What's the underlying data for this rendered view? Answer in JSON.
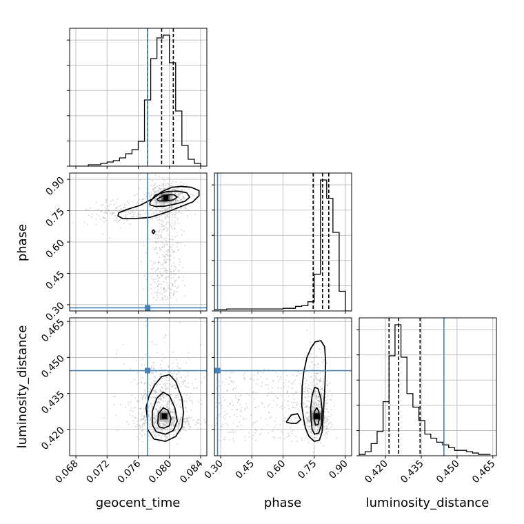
{
  "chart_data": {
    "type": "corner",
    "parameters": [
      "geocent_time",
      "phase",
      "luminosity_distance"
    ],
    "truths": {
      "geocent_time": 0.0772,
      "phase": 0.285,
      "luminosity_distance": 0.4445
    },
    "colors": {
      "truth": "#4682b4",
      "hist": "#000000",
      "grid": "#b0b0b0",
      "scatter": "#a0a0a0"
    },
    "grid": true,
    "ranges": {
      "geocent_time": [
        0.0672,
        0.0848
      ],
      "phase": [
        0.27,
        0.93
      ],
      "luminosity_distance": [
        0.409,
        0.4665
      ]
    },
    "ticks": {
      "geocent_time": [
        0.068,
        0.072,
        0.076,
        0.08,
        0.084
      ],
      "phase": [
        0.3,
        0.45,
        0.6,
        0.75,
        0.9
      ],
      "luminosity_distance": [
        0.42,
        0.435,
        0.45,
        0.465
      ]
    },
    "tick_labels": {
      "geocent_time": [
        "0.068",
        "0.072",
        "0.076",
        "0.080",
        "0.084"
      ],
      "phase": [
        "0.30",
        "0.45",
        "0.60",
        "0.75",
        "0.90"
      ],
      "luminosity_distance": [
        "0.420",
        "0.435",
        "0.450",
        "0.465"
      ]
    },
    "quantiles": {
      "geocent_time": [
        0.0772,
        0.079,
        0.0805
      ],
      "phase": [
        0.745,
        0.79,
        0.82
      ],
      "luminosity_distance": [
        0.4215,
        0.4255,
        0.4345
      ]
    },
    "histograms": {
      "geocent_time": {
        "edges": [
          0.0672,
          0.068,
          0.0688,
          0.0696,
          0.0704,
          0.0712,
          0.072,
          0.0728,
          0.0736,
          0.0744,
          0.0752,
          0.076,
          0.0768,
          0.0776,
          0.0784,
          0.0792,
          0.08,
          0.0808,
          0.0816,
          0.0824,
          0.0832,
          0.084,
          0.0848
        ],
        "counts": [
          0,
          0,
          0,
          1,
          1,
          2,
          3,
          4,
          6,
          9,
          12,
          18,
          48,
          78,
          93,
          95,
          75,
          40,
          15,
          5,
          2,
          0
        ]
      },
      "phase": {
        "edges": [
          0.27,
          0.3,
          0.33,
          0.36,
          0.39,
          0.42,
          0.45,
          0.48,
          0.51,
          0.54,
          0.57,
          0.6,
          0.63,
          0.66,
          0.69,
          0.72,
          0.75,
          0.78,
          0.81,
          0.84,
          0.87,
          0.9,
          0.93
        ],
        "counts": [
          1,
          1,
          1.5,
          1.5,
          1.5,
          1.5,
          1.5,
          1.5,
          1.5,
          1.5,
          1.5,
          2,
          2,
          3.5,
          4,
          7,
          28,
          100,
          86,
          60,
          15,
          0
        ]
      },
      "luminosity_distance": {
        "edges": [
          0.409,
          0.4115,
          0.414,
          0.4165,
          0.419,
          0.4215,
          0.424,
          0.4265,
          0.429,
          0.4315,
          0.434,
          0.4365,
          0.439,
          0.4415,
          0.444,
          0.4465,
          0.449,
          0.4515,
          0.454,
          0.4565,
          0.459,
          0.4615,
          0.464
        ],
        "counts": [
          1,
          3,
          9,
          18,
          40,
          74,
          97,
          73,
          46,
          36,
          26,
          16,
          13,
          10,
          8,
          6,
          4,
          4,
          3,
          2,
          1,
          1
        ]
      }
    },
    "contours": {
      "phase_vs_geocent_time": [
        [
          [
            0.0735,
            0.74
          ],
          [
            0.0745,
            0.755
          ],
          [
            0.0762,
            0.775
          ],
          [
            0.078,
            0.81
          ],
          [
            0.079,
            0.84
          ],
          [
            0.0803,
            0.862
          ],
          [
            0.0815,
            0.866
          ],
          [
            0.0828,
            0.862
          ],
          [
            0.0838,
            0.846
          ],
          [
            0.0838,
            0.822
          ],
          [
            0.083,
            0.792
          ],
          [
            0.0815,
            0.77
          ],
          [
            0.08,
            0.748
          ],
          [
            0.079,
            0.735
          ],
          [
            0.0775,
            0.718
          ],
          [
            0.0755,
            0.712
          ],
          [
            0.074,
            0.712
          ],
          [
            0.0734,
            0.725
          ],
          [
            0.0735,
            0.74
          ]
        ],
        [
          [
            0.0775,
            0.79
          ],
          [
            0.0782,
            0.825
          ],
          [
            0.0795,
            0.84
          ],
          [
            0.081,
            0.844
          ],
          [
            0.0822,
            0.836
          ],
          [
            0.0826,
            0.815
          ],
          [
            0.082,
            0.795
          ],
          [
            0.0808,
            0.782
          ],
          [
            0.0795,
            0.772
          ],
          [
            0.0782,
            0.77
          ],
          [
            0.0775,
            0.778
          ],
          [
            0.0775,
            0.79
          ]
        ],
        [
          [
            0.0784,
            0.805
          ],
          [
            0.079,
            0.818
          ],
          [
            0.0798,
            0.826
          ],
          [
            0.0806,
            0.826
          ],
          [
            0.081,
            0.815
          ],
          [
            0.0805,
            0.802
          ],
          [
            0.0795,
            0.796
          ],
          [
            0.0786,
            0.797
          ],
          [
            0.0784,
            0.805
          ]
        ],
        [
          [
            0.07775,
            0.65
          ],
          [
            0.07795,
            0.658
          ],
          [
            0.07815,
            0.65
          ],
          [
            0.07795,
            0.64
          ],
          [
            0.07775,
            0.65
          ]
        ]
      ],
      "luminosity_distance_vs_geocent_time": [
        [
          [
            0.0772,
            0.424
          ],
          [
            0.077,
            0.429
          ],
          [
            0.0774,
            0.434
          ],
          [
            0.0781,
            0.4385
          ],
          [
            0.079,
            0.442
          ],
          [
            0.08,
            0.4428
          ],
          [
            0.0808,
            0.44
          ],
          [
            0.0816,
            0.433
          ],
          [
            0.0818,
            0.427
          ],
          [
            0.0816,
            0.421
          ],
          [
            0.0808,
            0.417
          ],
          [
            0.0795,
            0.415
          ],
          [
            0.078,
            0.416
          ],
          [
            0.0772,
            0.42
          ],
          [
            0.0772,
            0.424
          ]
        ],
        [
          [
            0.0778,
            0.422
          ],
          [
            0.0778,
            0.4275
          ],
          [
            0.0784,
            0.433
          ],
          [
            0.0792,
            0.4355
          ],
          [
            0.08,
            0.434
          ],
          [
            0.0807,
            0.429
          ],
          [
            0.081,
            0.4235
          ],
          [
            0.0805,
            0.4195
          ],
          [
            0.0795,
            0.418
          ],
          [
            0.0783,
            0.419
          ],
          [
            0.0778,
            0.422
          ]
        ],
        [
          [
            0.0785,
            0.4225
          ],
          [
            0.0786,
            0.4265
          ],
          [
            0.0792,
            0.429
          ],
          [
            0.0798,
            0.428
          ],
          [
            0.0802,
            0.4245
          ],
          [
            0.08,
            0.4215
          ],
          [
            0.0793,
            0.4205
          ],
          [
            0.0787,
            0.421
          ],
          [
            0.0785,
            0.4225
          ]
        ]
      ],
      "luminosity_distance_vs_phase": [
        [
          [
            0.7,
            0.424
          ],
          [
            0.69,
            0.43
          ],
          [
            0.692,
            0.438
          ],
          [
            0.7,
            0.444
          ],
          [
            0.715,
            0.45
          ],
          [
            0.735,
            0.454
          ],
          [
            0.755,
            0.4565
          ],
          [
            0.782,
            0.457
          ],
          [
            0.8,
            0.4545
          ],
          [
            0.805,
            0.448
          ],
          [
            0.802,
            0.439
          ],
          [
            0.795,
            0.428
          ],
          [
            0.788,
            0.419
          ],
          [
            0.775,
            0.4155
          ],
          [
            0.75,
            0.415
          ],
          [
            0.725,
            0.417
          ],
          [
            0.708,
            0.4205
          ],
          [
            0.7,
            0.424
          ]
        ],
        [
          [
            0.735,
            0.424
          ],
          [
            0.733,
            0.429
          ],
          [
            0.74,
            0.434
          ],
          [
            0.752,
            0.4375
          ],
          [
            0.768,
            0.437
          ],
          [
            0.782,
            0.433
          ],
          [
            0.788,
            0.428
          ],
          [
            0.785,
            0.422
          ],
          [
            0.772,
            0.4185
          ],
          [
            0.752,
            0.418
          ],
          [
            0.74,
            0.42
          ],
          [
            0.735,
            0.424
          ]
        ],
        [
          [
            0.75,
            0.424
          ],
          [
            0.752,
            0.4275
          ],
          [
            0.762,
            0.429
          ],
          [
            0.772,
            0.4275
          ],
          [
            0.775,
            0.4245
          ],
          [
            0.768,
            0.422
          ],
          [
            0.756,
            0.4218
          ],
          [
            0.75,
            0.424
          ]
        ],
        [
          [
            0.615,
            0.423
          ],
          [
            0.64,
            0.426
          ],
          [
            0.67,
            0.4265
          ],
          [
            0.685,
            0.424
          ],
          [
            0.665,
            0.4225
          ],
          [
            0.64,
            0.4225
          ],
          [
            0.615,
            0.423
          ]
        ]
      ]
    },
    "density_peaks": {
      "phase_vs_geocent_time": [
        0.0795,
        0.812
      ],
      "luminosity_distance_vs_geocent_time": [
        0.0793,
        0.4255
      ],
      "luminosity_distance_vs_phase": [
        0.762,
        0.4255
      ]
    }
  }
}
